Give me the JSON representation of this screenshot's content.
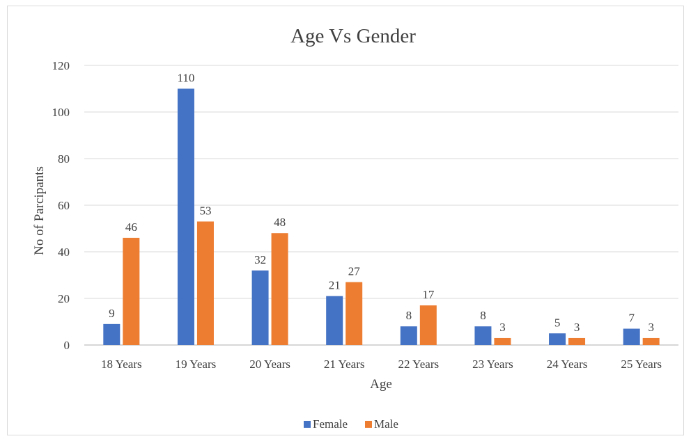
{
  "chart_data": {
    "type": "bar",
    "title": "Age Vs Gender",
    "xlabel": "Age",
    "ylabel": "No of Parcipants",
    "categories": [
      "18 Years",
      "19 Years",
      "20 Years",
      "21 Years",
      "22 Years",
      "23 Years",
      "24 Years",
      "25 Years"
    ],
    "series": [
      {
        "name": "Female",
        "color": "#4472c4",
        "values": [
          9,
          110,
          32,
          21,
          8,
          8,
          5,
          7
        ]
      },
      {
        "name": "Male",
        "color": "#ed7d31",
        "values": [
          46,
          53,
          48,
          27,
          17,
          3,
          3,
          3
        ]
      }
    ],
    "ylim": [
      0,
      120
    ],
    "yticks": [
      0,
      20,
      40,
      60,
      80,
      100,
      120
    ],
    "grid": true,
    "legend_position": "bottom"
  }
}
